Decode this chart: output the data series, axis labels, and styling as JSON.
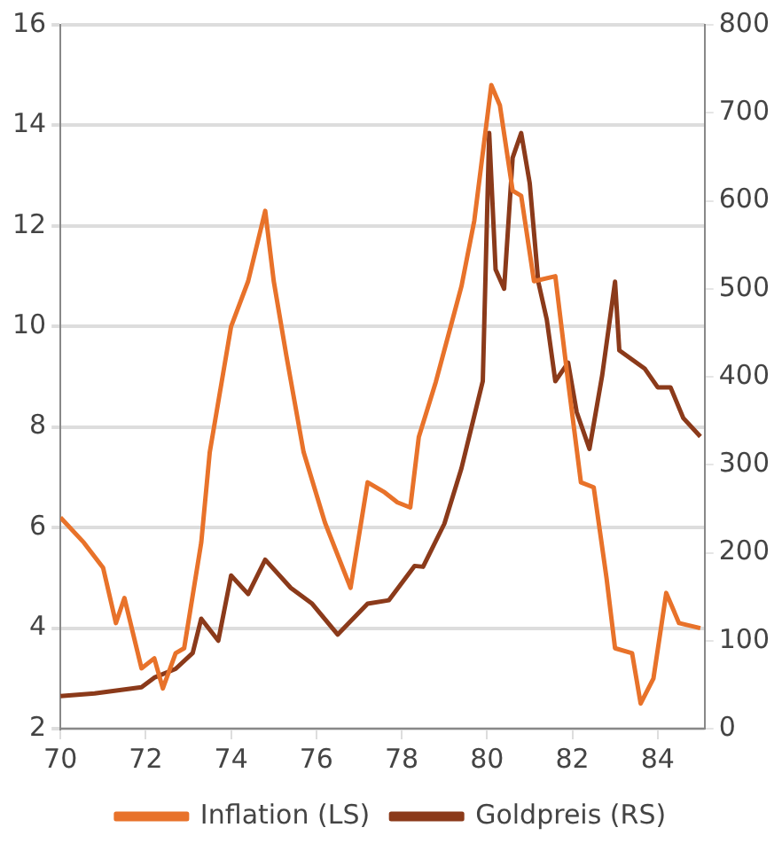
{
  "chart_data": {
    "type": "line",
    "xlim": [
      70,
      85.1
    ],
    "xticks": [
      70,
      72,
      74,
      76,
      78,
      80,
      82,
      84
    ],
    "ylim": [
      2,
      16
    ],
    "yticks": [
      2,
      4,
      6,
      8,
      10,
      12,
      14,
      16
    ],
    "y2lim": [
      0,
      800
    ],
    "y2ticks": [
      0,
      100,
      200,
      300,
      400,
      500,
      600,
      700,
      800
    ],
    "grid": "y",
    "legend": "bottom",
    "marker": "none",
    "line_style": "solid",
    "series": [
      {
        "name": "Inflation (LS)",
        "color": "#e8722a",
        "x": [
          70,
          70.55,
          71,
          71.3,
          71.5,
          71.9,
          72.2,
          72.4,
          72.7,
          72.9,
          73.3,
          73.5,
          74,
          74.4,
          74.8,
          75,
          75.3,
          75.7,
          76.2,
          76.8,
          77.2,
          77.6,
          77.9,
          78.2,
          78.4,
          78.8,
          79.4,
          79.7,
          80.1,
          80.3,
          80.6,
          80.8,
          81.1,
          81.6,
          81.9,
          82.2,
          82.5,
          82.8,
          83,
          83.4,
          83.6,
          83.9,
          84.2,
          84.5,
          85
        ],
        "values": [
          6.2,
          5.7,
          5.2,
          4.1,
          4.6,
          3.2,
          3.4,
          2.8,
          3.5,
          3.6,
          5.7,
          7.5,
          10,
          10.9,
          12.3,
          10.9,
          9.4,
          7.5,
          6.1,
          4.8,
          6.9,
          6.7,
          6.5,
          6.4,
          7.8,
          8.9,
          10.8,
          12.1,
          14.8,
          14.4,
          12.7,
          12.6,
          10.9,
          11,
          8.9,
          6.9,
          6.8,
          5,
          3.6,
          3.5,
          2.5,
          3,
          4.7,
          4.1,
          4
        ]
      },
      {
        "name": "Goldpreis (RS)",
        "color": "#8b3a1a",
        "axis": "y2",
        "x": [
          70,
          70.8,
          71.9,
          72.2,
          72.7,
          73.1,
          73.3,
          73.7,
          74,
          74.4,
          74.8,
          75.4,
          75.9,
          76.5,
          77.2,
          77.7,
          78.3,
          78.5,
          79,
          79.4,
          79.9,
          80.05,
          80.2,
          80.4,
          80.6,
          80.8,
          81,
          81.2,
          81.4,
          81.6,
          81.9,
          82.1,
          82.4,
          82.7,
          83,
          83.1,
          83.7,
          84,
          84.3,
          84.6,
          85
        ],
        "values": [
          37,
          40,
          47,
          58,
          68,
          86,
          125,
          100,
          174,
          153,
          192,
          160,
          142,
          107,
          142,
          146,
          185,
          184,
          233,
          296,
          395,
          677,
          522,
          500,
          649,
          677,
          620,
          508,
          465,
          395,
          416,
          360,
          318,
          402,
          508,
          430,
          409,
          388,
          388,
          353,
          332
        ]
      }
    ]
  }
}
